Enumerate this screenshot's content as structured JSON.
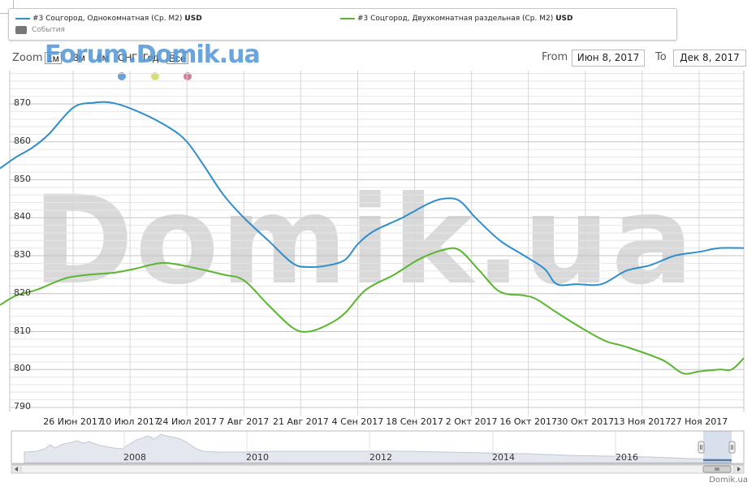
{
  "legend": {
    "series": [
      {
        "label": "#3 Соцгород, Однокомнатная (Ср. М2)",
        "unit": "USD",
        "color": "#2f8ecb"
      },
      {
        "label": "#3 Соцгород, Двухкомнатная раздельная (Ср. М2)",
        "unit": "USD",
        "color": "#5cb531"
      }
    ],
    "events_label": "События"
  },
  "toolbar": {
    "zoom_label": "Zoom",
    "buttons": [
      "1м",
      "3м",
      "6м",
      "СНГ",
      "Год",
      "Все"
    ],
    "from_label": "From",
    "from_value": "Июн 8, 2017",
    "to_label": "To",
    "to_value": "Дек 8, 2017"
  },
  "watermark_small": "Forum.Domik.ua",
  "watermark_big": "Domik.ua",
  "credit": "Domik.ua",
  "event_colors": [
    "#6a9fd8",
    "#d8dc7a",
    "#d97a95"
  ],
  "chart_data": {
    "type": "line",
    "ylim": [
      788,
      880
    ],
    "y_ticks": [
      "870",
      "860",
      "850",
      "840",
      "830",
      "820",
      "810",
      "800",
      "790"
    ],
    "x_tick_labels": [
      "26 Июн 2017",
      "10 Июл 2017",
      "24 Июл 2017",
      "7 Авг 2017",
      "21 Авг 2017",
      "4 Сен 2017",
      "18 Сен 2017",
      "2 Окт 2017",
      "16 Окт 2017",
      "30 Окт 2017",
      "13 Ноя 2017",
      "27 Ноя 2017"
    ],
    "x_start": "2017-06-08",
    "series": [
      {
        "name": "#3 Соцгород, Однокомнатная (Ср. М2)",
        "color": "#2f8ecb",
        "points": [
          [
            "2017-06-08",
            853
          ],
          [
            "2017-06-12",
            856
          ],
          [
            "2017-06-16",
            858.5
          ],
          [
            "2017-06-20",
            862
          ],
          [
            "2017-06-26",
            869
          ],
          [
            "2017-07-01",
            870.3
          ],
          [
            "2017-07-06",
            870.2
          ],
          [
            "2017-07-13",
            867.5
          ],
          [
            "2017-07-20",
            863.5
          ],
          [
            "2017-07-24",
            860
          ],
          [
            "2017-07-28",
            854
          ],
          [
            "2017-08-02",
            846
          ],
          [
            "2017-08-07",
            840
          ],
          [
            "2017-08-13",
            834
          ],
          [
            "2017-08-19",
            828
          ],
          [
            "2017-08-23",
            827
          ],
          [
            "2017-08-28",
            827.5
          ],
          [
            "2017-09-01",
            829
          ],
          [
            "2017-09-04",
            833
          ],
          [
            "2017-09-08",
            836.5
          ],
          [
            "2017-09-15",
            840
          ],
          [
            "2017-09-21",
            843.5
          ],
          [
            "2017-09-25",
            845
          ],
          [
            "2017-09-29",
            844.5
          ],
          [
            "2017-10-03",
            840
          ],
          [
            "2017-10-09",
            834
          ],
          [
            "2017-10-15",
            830
          ],
          [
            "2017-10-20",
            826.5
          ],
          [
            "2017-10-23",
            822.5
          ],
          [
            "2017-10-28",
            822.5
          ],
          [
            "2017-11-03",
            822.5
          ],
          [
            "2017-11-09",
            826
          ],
          [
            "2017-11-15",
            827.5
          ],
          [
            "2017-11-21",
            830
          ],
          [
            "2017-11-27",
            831
          ],
          [
            "2017-12-02",
            832
          ],
          [
            "2017-12-08",
            832
          ]
        ]
      },
      {
        "name": "#3 Соцгород, Двухкомнатная раздельная (Ср. М2)",
        "color": "#5cb531",
        "points": [
          [
            "2017-06-08",
            817
          ],
          [
            "2017-06-12",
            819.5
          ],
          [
            "2017-06-17",
            821
          ],
          [
            "2017-06-24",
            824
          ],
          [
            "2017-06-30",
            825
          ],
          [
            "2017-07-06",
            825.5
          ],
          [
            "2017-07-11",
            826.5
          ],
          [
            "2017-07-17",
            828
          ],
          [
            "2017-07-21",
            827.8
          ],
          [
            "2017-07-27",
            826.5
          ],
          [
            "2017-08-02",
            825
          ],
          [
            "2017-08-07",
            823.5
          ],
          [
            "2017-08-13",
            817
          ],
          [
            "2017-08-19",
            811
          ],
          [
            "2017-08-23",
            810
          ],
          [
            "2017-08-28",
            812
          ],
          [
            "2017-09-01",
            815
          ],
          [
            "2017-09-06",
            821
          ],
          [
            "2017-09-13",
            825
          ],
          [
            "2017-09-19",
            829
          ],
          [
            "2017-09-25",
            831.5
          ],
          [
            "2017-09-29",
            831.5
          ],
          [
            "2017-10-04",
            826
          ],
          [
            "2017-10-09",
            820.5
          ],
          [
            "2017-10-15",
            819.5
          ],
          [
            "2017-10-18",
            818.5
          ],
          [
            "2017-10-23",
            815
          ],
          [
            "2017-10-29",
            811
          ],
          [
            "2017-11-04",
            807.5
          ],
          [
            "2017-11-09",
            806
          ],
          [
            "2017-11-18",
            802.5
          ],
          [
            "2017-11-23",
            799
          ],
          [
            "2017-11-27",
            799.5
          ],
          [
            "2017-12-02",
            800
          ],
          [
            "2017-12-05",
            800
          ],
          [
            "2017-12-08",
            803
          ]
        ]
      }
    ]
  },
  "navigator": {
    "year_labels": [
      "2008",
      "2010",
      "2012",
      "2014",
      "2016"
    ]
  }
}
